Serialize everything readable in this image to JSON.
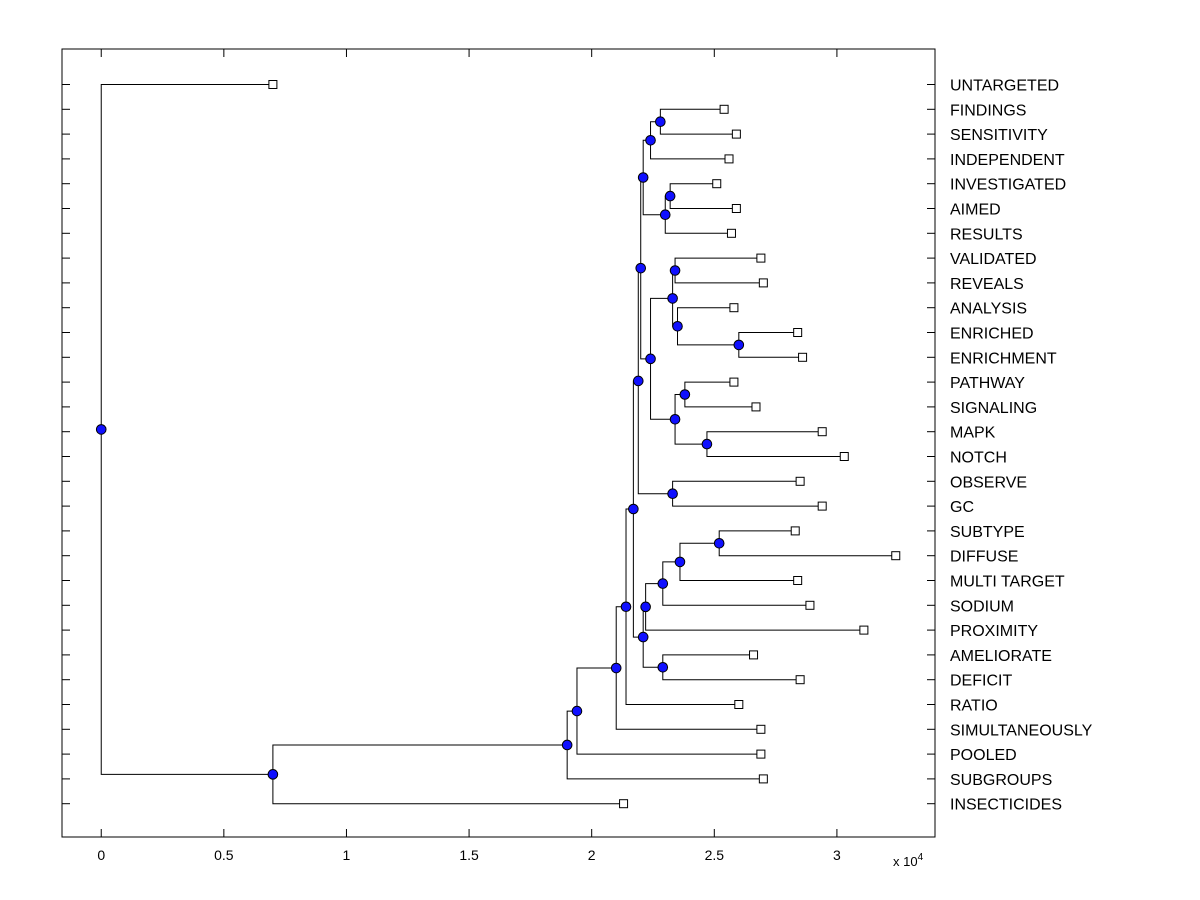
{
  "chart_data": {
    "type": "dendrogram",
    "title": "",
    "xlabel": "",
    "ylabel": "",
    "x_scale_label": {
      "base": "x 10",
      "exponent": "4"
    },
    "xlim": [
      -0.16,
      3.4
    ],
    "xticks": [
      0,
      0.5,
      1,
      1.5,
      2,
      2.5,
      3
    ],
    "xtick_labels": [
      "0",
      "0.5",
      "1",
      "1.5",
      "2",
      "2.5",
      "3"
    ],
    "colors": {
      "node": "#1010ff",
      "node_stroke": "#000000",
      "line": "#000000",
      "leaf_fill": "#ffffff",
      "frame": "#000000"
    },
    "leaves": [
      {
        "label": "UNTARGETED",
        "value": 0.7
      },
      {
        "label": "FINDINGS",
        "value": 2.54
      },
      {
        "label": "SENSITIVITY",
        "value": 2.59
      },
      {
        "label": "INDEPENDENT",
        "value": 2.56
      },
      {
        "label": "INVESTIGATED",
        "value": 2.51
      },
      {
        "label": "AIMED",
        "value": 2.59
      },
      {
        "label": "RESULTS",
        "value": 2.57
      },
      {
        "label": "VALIDATED",
        "value": 2.69
      },
      {
        "label": "REVEALS",
        "value": 2.7
      },
      {
        "label": "ANALYSIS",
        "value": 2.58
      },
      {
        "label": "ENRICHED",
        "value": 2.84
      },
      {
        "label": "ENRICHMENT",
        "value": 2.86
      },
      {
        "label": "PATHWAY",
        "value": 2.58
      },
      {
        "label": "SIGNALING",
        "value": 2.67
      },
      {
        "label": "MAPK",
        "value": 2.94
      },
      {
        "label": "NOTCH",
        "value": 3.03
      },
      {
        "label": "OBSERVE",
        "value": 2.85
      },
      {
        "label": "GC",
        "value": 2.94
      },
      {
        "label": "SUBTYPE",
        "value": 2.83
      },
      {
        "label": "DIFFUSE",
        "value": 3.24
      },
      {
        "label": "MULTI TARGET",
        "value": 2.84
      },
      {
        "label": "SODIUM",
        "value": 2.89
      },
      {
        "label": "PROXIMITY",
        "value": 3.11
      },
      {
        "label": "AMELIORATE",
        "value": 2.66
      },
      {
        "label": "DEFICIT",
        "value": 2.85
      },
      {
        "label": "RATIO",
        "value": 2.6
      },
      {
        "label": "SIMULTANEOUSLY",
        "value": 2.69
      },
      {
        "label": "POOLED",
        "value": 2.69
      },
      {
        "label": "SUBGROUPS",
        "value": 2.7
      },
      {
        "label": "INSECTICIDES",
        "value": 2.13
      }
    ],
    "nodes": [
      {
        "id": "n1",
        "value": 2.28,
        "children": [
          "L1",
          "L2"
        ]
      },
      {
        "id": "n2",
        "value": 2.24,
        "children": [
          "n1",
          "L3"
        ]
      },
      {
        "id": "n3",
        "value": 2.32,
        "children": [
          "L4",
          "L5"
        ]
      },
      {
        "id": "n4",
        "value": 2.3,
        "children": [
          "n3",
          "L6"
        ]
      },
      {
        "id": "n5",
        "value": 2.21,
        "children": [
          "n2",
          "n4"
        ]
      },
      {
        "id": "n6",
        "value": 2.34,
        "children": [
          "L7",
          "L8"
        ]
      },
      {
        "id": "n7",
        "value": 2.6,
        "children": [
          "L10",
          "L11"
        ]
      },
      {
        "id": "n8",
        "value": 2.35,
        "children": [
          "L9",
          "n7"
        ]
      },
      {
        "id": "n9",
        "value": 2.33,
        "children": [
          "n6",
          "n8"
        ]
      },
      {
        "id": "n10",
        "value": 2.38,
        "children": [
          "L12",
          "L13"
        ]
      },
      {
        "id": "n11",
        "value": 2.47,
        "children": [
          "L14",
          "L15"
        ]
      },
      {
        "id": "n12",
        "value": 2.34,
        "children": [
          "n10",
          "n11"
        ]
      },
      {
        "id": "n13",
        "value": 2.24,
        "children": [
          "n9",
          "n12"
        ]
      },
      {
        "id": "n14",
        "value": 2.2,
        "children": [
          "n5",
          "n13"
        ]
      },
      {
        "id": "n15",
        "value": 2.33,
        "children": [
          "L16",
          "L17"
        ]
      },
      {
        "id": "n16",
        "value": 2.19,
        "children": [
          "n14",
          "n15"
        ]
      },
      {
        "id": "n17",
        "value": 2.52,
        "children": [
          "L18",
          "L19"
        ]
      },
      {
        "id": "n18",
        "value": 2.36,
        "children": [
          "n17",
          "L20"
        ]
      },
      {
        "id": "n19",
        "value": 2.29,
        "children": [
          "n18",
          "L21"
        ]
      },
      {
        "id": "n20",
        "value": 2.22,
        "children": [
          "n19",
          "L22"
        ]
      },
      {
        "id": "n21",
        "value": 2.29,
        "children": [
          "L23",
          "L24"
        ]
      },
      {
        "id": "n22",
        "value": 2.21,
        "children": [
          "n20",
          "n21"
        ]
      },
      {
        "id": "n23",
        "value": 2.17,
        "children": [
          "n16",
          "n22"
        ]
      },
      {
        "id": "n24",
        "value": 2.14,
        "children": [
          "n23",
          "L25"
        ]
      },
      {
        "id": "n25",
        "value": 2.1,
        "children": [
          "n24",
          "L26"
        ]
      },
      {
        "id": "n26",
        "value": 1.94,
        "children": [
          "n25",
          "L27"
        ]
      },
      {
        "id": "n27",
        "value": 1.9,
        "children": [
          "n26",
          "L28"
        ]
      },
      {
        "id": "n28",
        "value": 0.7,
        "children": [
          "n27",
          "L29"
        ]
      },
      {
        "id": "n29",
        "value": 0.0,
        "children": [
          "L0",
          "n28"
        ]
      }
    ]
  }
}
